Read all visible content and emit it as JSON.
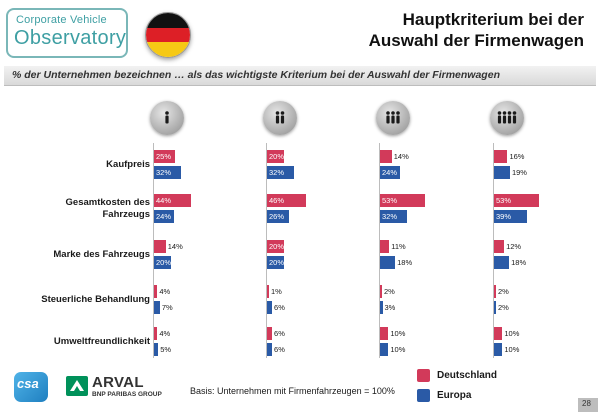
{
  "header": {
    "logo_line1": "Corporate Vehicle",
    "logo_line2": "Observatory",
    "title_line1": "Hauptkriterium bei der",
    "title_line2": "Auswahl der Firmenwagen",
    "flag_colors": [
      "#111111",
      "#dd1f26",
      "#f6c915"
    ]
  },
  "subtitle": "% der Unternehmen bezeichnen … als das wichtigste Kriterium bei der Auswahl der Firmenwagen",
  "colors": {
    "deutschland": "#d23a5a",
    "europa": "#2a5aa6"
  },
  "chart_data": {
    "type": "bar",
    "orientation": "horizontal",
    "title": "Hauptkriterium bei der Auswahl der Firmenwagen",
    "categories": [
      "Kaufpreis",
      "Gesamtkosten des Fahrzeugs",
      "Marke des Fahrzeugs",
      "Steuerliche Behandlung",
      "Umweltfreundlichkeit"
    ],
    "category_lines": [
      [
        "Kaufpreis"
      ],
      [
        "Gesamtkosten des",
        "Fahrzeugs"
      ],
      [
        "Marke des Fahrzeugs"
      ],
      [
        "Steuerliche Behandlung"
      ],
      [
        "Umweltfreundlichkeit"
      ]
    ],
    "groups": [
      {
        "icon": "one-person-icon",
        "people": 1
      },
      {
        "icon": "two-people-icon",
        "people": 2
      },
      {
        "icon": "three-people-icon",
        "people": 3
      },
      {
        "icon": "four-people-icon",
        "people": 4
      }
    ],
    "series": [
      {
        "name": "Deutschland",
        "values": [
          [
            25,
            44,
            14,
            4,
            4
          ],
          [
            20,
            46,
            20,
            1,
            6
          ],
          [
            14,
            53,
            11,
            2,
            10
          ],
          [
            16,
            53,
            12,
            2,
            10
          ]
        ]
      },
      {
        "name": "Europa",
        "values": [
          [
            32,
            24,
            20,
            7,
            5
          ],
          [
            32,
            26,
            20,
            6,
            6
          ],
          [
            24,
            32,
            18,
            3,
            10
          ],
          [
            19,
            39,
            18,
            2,
            10
          ]
        ]
      }
    ],
    "value_suffix": "%",
    "xlim": [
      0,
      100
    ],
    "legend": [
      "Deutschland",
      "Europa"
    ],
    "legend_position": "bottom-right"
  },
  "footer": {
    "csa_logo": "csa",
    "arval_name": "ARVAL",
    "arval_sub": "BNP PARIBAS GROUP",
    "basis": "Basis: Unternehmen mit Firmenfahrzeugen = 100%",
    "legend_deutschland": "Deutschland",
    "legend_europa": "Europa",
    "page_number": "28"
  }
}
